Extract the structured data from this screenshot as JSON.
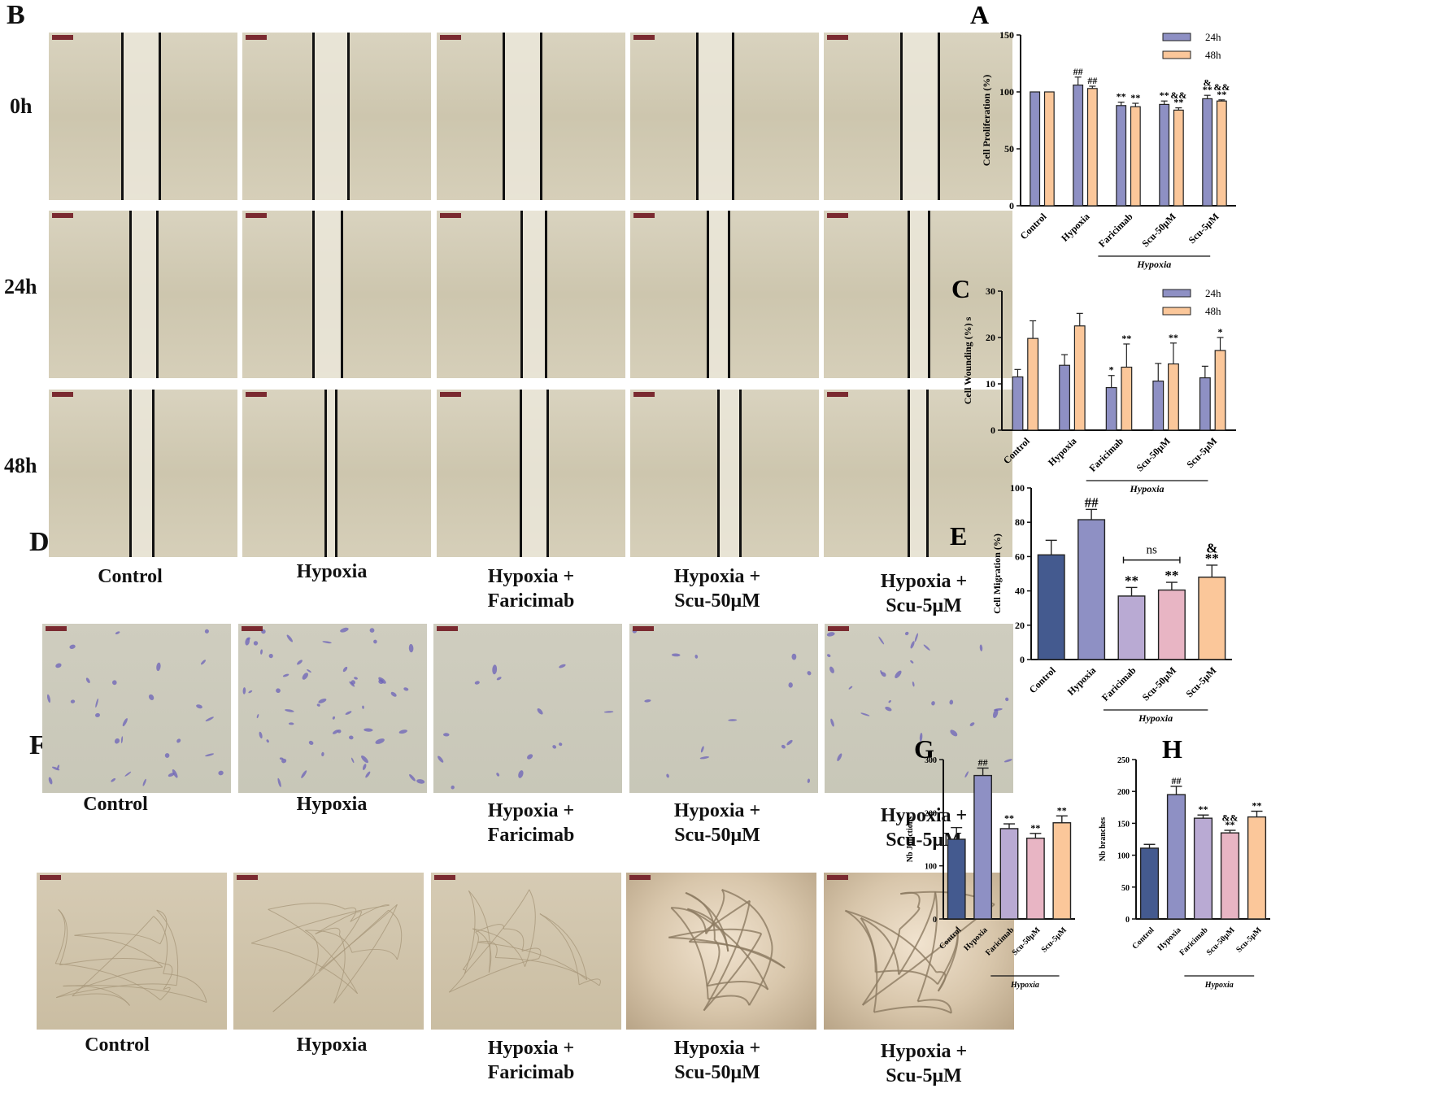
{
  "panels": {
    "B": {
      "label": "B",
      "rows": [
        "0h",
        "24h",
        "48h"
      ]
    },
    "D": {
      "label": "D"
    },
    "F": {
      "label": "F"
    }
  },
  "groups": [
    "Control",
    "Hypoxia",
    "Hypoxia +\nFaricimab",
    "Hypoxia +\nScu-50μM",
    "Hypoxia +\nScu-5μM"
  ],
  "chart_data": [
    {
      "id": "A",
      "label": "A",
      "type": "bar",
      "categories": [
        "Control",
        "Hypoxia",
        "Faricimab",
        "Scu-50μM",
        "Scu-5μM"
      ],
      "group_label": "Hypoxia",
      "ylabel": "Cell  Proliferation  (%)",
      "ylim": [
        0,
        150
      ],
      "yticks": [
        0,
        50,
        100,
        150
      ],
      "legend": "top-right",
      "series": [
        {
          "name": "24h",
          "values": [
            100,
            106,
            88,
            89,
            94
          ],
          "errors": [
            0,
            7,
            3,
            3,
            3
          ],
          "marks": [
            "",
            "##",
            "**",
            "**",
            "&\n**"
          ],
          "color": "#8e90c4"
        },
        {
          "name": "48h",
          "values": [
            100,
            103,
            87,
            84,
            92
          ],
          "errors": [
            0,
            2,
            3,
            2,
            1
          ],
          "marks": [
            "",
            "##",
            "**",
            "&&\n**",
            "&&\n**"
          ],
          "color": "#fbc79a"
        }
      ]
    },
    {
      "id": "C",
      "label": "C",
      "type": "bar",
      "categories": [
        "Control",
        "Hypoxia",
        "Faricimab",
        "Scu-50μM",
        "Scu-5μM"
      ],
      "group_label": "Hypoxia",
      "ylabel": "Cell  Wounding  (%)  s",
      "ylim": [
        0,
        30
      ],
      "yticks": [
        0,
        10,
        20,
        30
      ],
      "legend": "top-right",
      "series": [
        {
          "name": "24h",
          "values": [
            11.5,
            14,
            9.2,
            10.6,
            11.3
          ],
          "errors": [
            1.6,
            2.3,
            2.6,
            3.8,
            2.5
          ],
          "marks": [
            "",
            "",
            "*",
            "",
            ""
          ],
          "color": "#8e90c4"
        },
        {
          "name": "48h",
          "values": [
            19.8,
            22.5,
            13.6,
            14.3,
            17.2
          ],
          "errors": [
            3.8,
            2.7,
            5,
            4.5,
            2.8
          ],
          "marks": [
            "",
            "",
            "**",
            "**",
            "*"
          ],
          "color": "#fbc79a"
        }
      ]
    },
    {
      "id": "E",
      "label": "E",
      "type": "bar",
      "categories": [
        "Control",
        "Hypoxia",
        "Faricimab",
        "Scu-50μM",
        "Scu-5μM"
      ],
      "group_label": "Hypoxia",
      "ylabel": "Cell Migration  (%)",
      "ylim": [
        0,
        100
      ],
      "yticks": [
        0,
        20,
        40,
        60,
        80,
        100
      ],
      "values": [
        61,
        81.5,
        37,
        40.5,
        48
      ],
      "errors": [
        8.5,
        6,
        5,
        4.5,
        7
      ],
      "marks": [
        "",
        "##",
        "**",
        "**",
        "&\n**"
      ],
      "colors": [
        "#445a8f",
        "#8e90c4",
        "#b9aad3",
        "#e8b5c4",
        "#fbc79a"
      ],
      "annotation": {
        "text": "ns",
        "from": 2,
        "to": 3
      }
    },
    {
      "id": "G",
      "label": "G",
      "type": "bar",
      "categories": [
        "Control",
        "Hypoxia",
        "Faricimab",
        "Scu-50μM",
        "Scu-5μM"
      ],
      "group_label": "Hypoxia",
      "ylabel": "Nb Junctions",
      "ylim": [
        0,
        300
      ],
      "yticks": [
        0,
        100,
        200,
        300
      ],
      "values": [
        150,
        270,
        170,
        152,
        181
      ],
      "errors": [
        22,
        14,
        9,
        9,
        13
      ],
      "marks": [
        "",
        "##",
        "**",
        "**",
        "**"
      ],
      "colors": [
        "#445a8f",
        "#8e90c4",
        "#b9aad3",
        "#e8b5c4",
        "#fbc79a"
      ]
    },
    {
      "id": "H",
      "label": "H",
      "type": "bar",
      "categories": [
        "Control",
        "Hypoxia",
        "Faricimab",
        "Scu-50μM",
        "Scu-5μM"
      ],
      "group_label": "Hypoxia",
      "ylabel": "Nb branches",
      "ylim": [
        0,
        250
      ],
      "yticks": [
        0,
        50,
        100,
        150,
        200,
        250
      ],
      "values": [
        111,
        195,
        158,
        135,
        160
      ],
      "errors": [
        6,
        13,
        5,
        4,
        9
      ],
      "marks": [
        "",
        "##",
        "**",
        "&&\n**",
        "**"
      ],
      "colors": [
        "#445a8f",
        "#8e90c4",
        "#b9aad3",
        "#e8b5c4",
        "#fbc79a"
      ]
    }
  ]
}
